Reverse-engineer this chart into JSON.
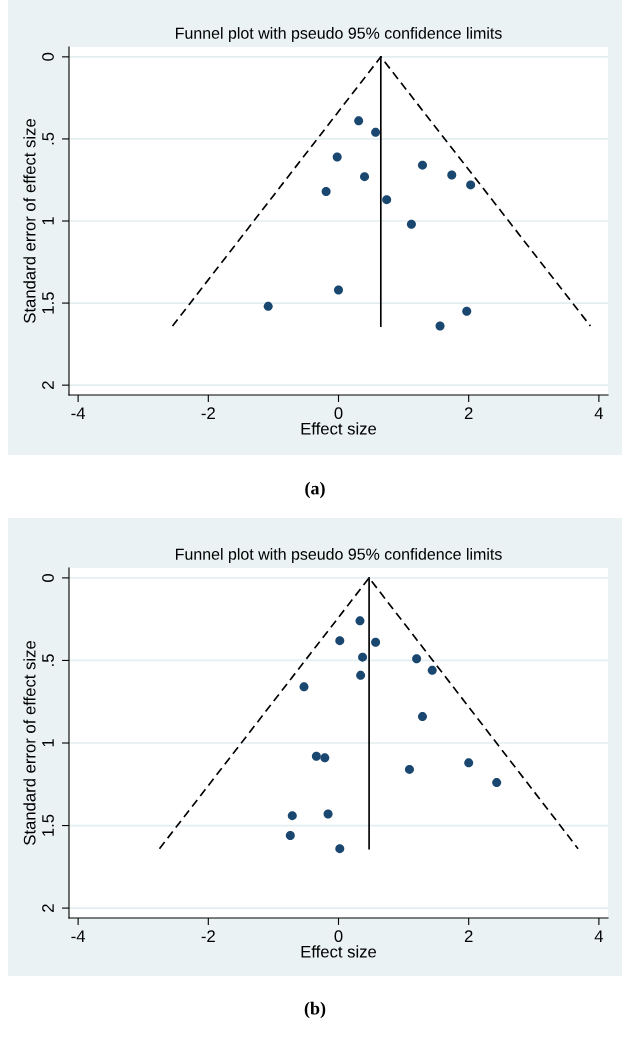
{
  "chart_data": [
    {
      "type": "scatter",
      "title": "Funnel plot with pseudo 95% confidence limits",
      "xlabel": "Effect size",
      "ylabel": "Standard error of effect size",
      "annotations": [
        "(a)"
      ],
      "xlim": [
        -4.14,
        4.14
      ],
      "ylim": [
        2.06,
        -0.06
      ],
      "xticks": [
        -4,
        -2,
        0,
        2,
        4
      ],
      "yticks": [
        0,
        {
          "value": 0.5,
          "label": ".5"
        },
        1,
        1.5,
        2
      ],
      "grid": "y",
      "series": [
        {
          "marker": "circle",
          "color": "#1a476f",
          "x": [
            0.31,
            0.57,
            -0.02,
            1.29,
            1.74,
            0.4,
            2.03,
            -0.19,
            0.74,
            1.12,
            0.0,
            -1.08,
            1.97,
            1.56
          ],
          "values": [
            0.39,
            0.46,
            0.61,
            0.66,
            0.72,
            0.73,
            0.78,
            0.82,
            0.87,
            1.02,
            1.42,
            1.52,
            1.55,
            1.64
          ]
        },
        {
          "type": "line",
          "color": "#000000",
          "line_style": "dashed",
          "x": [
            -2.55,
            0.65,
            3.87
          ],
          "values": [
            1.64,
            0,
            1.64
          ]
        },
        {
          "type": "line",
          "color": "#000000",
          "line_style": "solid",
          "x": [
            0.65,
            0.65
          ],
          "values": [
            0,
            1.64
          ]
        }
      ]
    },
    {
      "type": "scatter",
      "title": "Funnel plot with pseudo 95% confidence limits",
      "xlabel": "Effect size",
      "ylabel": "Standard error of effect size",
      "annotations": [
        "(b)"
      ],
      "xlim": [
        -4.14,
        4.14
      ],
      "ylim": [
        2.06,
        -0.06
      ],
      "xticks": [
        -4,
        -2,
        0,
        2,
        4
      ],
      "yticks": [
        0,
        {
          "value": 0.5,
          "label": ".5"
        },
        1,
        1.5,
        2
      ],
      "grid": "y",
      "series": [
        {
          "marker": "circle",
          "color": "#1a476f",
          "x": [
            0.33,
            0.02,
            0.57,
            0.37,
            1.2,
            1.44,
            0.34,
            -0.53,
            1.29,
            -0.34,
            -0.21,
            2.0,
            1.09,
            2.43,
            -0.71,
            -0.16,
            -0.74,
            0.02
          ],
          "values": [
            0.26,
            0.38,
            0.39,
            0.48,
            0.49,
            0.56,
            0.59,
            0.66,
            0.84,
            1.08,
            1.09,
            1.12,
            1.16,
            1.24,
            1.44,
            1.43,
            1.56,
            1.64
          ]
        },
        {
          "type": "line",
          "color": "#000000",
          "line_style": "dashed",
          "x": [
            -2.75,
            0.47,
            3.68
          ],
          "values": [
            1.64,
            0,
            1.64
          ]
        },
        {
          "type": "line",
          "color": "#000000",
          "line_style": "solid",
          "x": [
            0.47,
            0.47
          ],
          "values": [
            0,
            1.64
          ]
        }
      ]
    }
  ]
}
